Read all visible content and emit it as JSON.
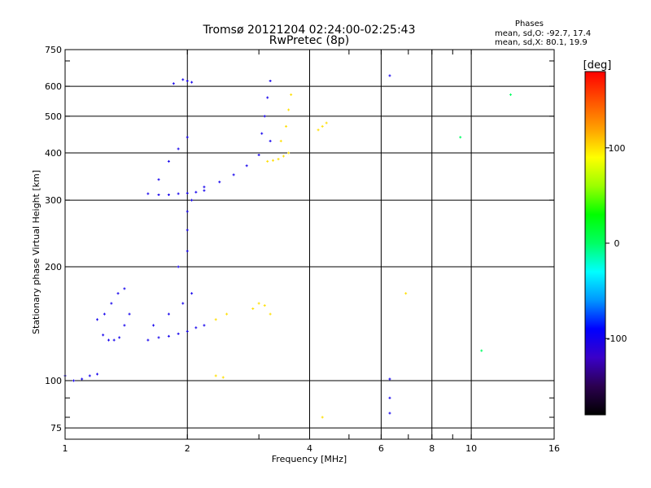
{
  "chart_data": {
    "type": "scatter",
    "title": "Tromsø 20121204 02:24:00-02:25:43",
    "subtitle": "RwPretec (8p)",
    "xlabel": "Frequency [MHz]",
    "ylabel": "Stationary phase Virtual Height [km]",
    "x_scale": "log",
    "y_scale": "log",
    "xlim": [
      1,
      16
    ],
    "ylim": [
      70,
      750
    ],
    "x_ticks": [
      1,
      2,
      4,
      6,
      8,
      10,
      16
    ],
    "y_ticks": [
      75,
      100,
      200,
      300,
      400,
      500,
      600,
      750
    ],
    "grid": true,
    "stats": {
      "heading": "Phases",
      "line_o": "mean, sd,O:  -92.7, 17.4",
      "line_x": "mean, sd,X:   80.1, 19.9"
    },
    "colorbar": {
      "label": "[deg]",
      "ticks": [
        100,
        0,
        -100
      ],
      "range": [
        -180,
        180
      ],
      "colors": [
        "#000000",
        "#2b0050",
        "#3a00c8",
        "#0000ff",
        "#0096ff",
        "#00ffff",
        "#00ff64",
        "#00ff00",
        "#9bff00",
        "#ffff00",
        "#ffa000",
        "#ff5000",
        "#ff0000"
      ]
    },
    "series": [
      {
        "phase": -100,
        "x": [
          1.0,
          1.05,
          1.1,
          1.15,
          1.2
        ],
        "y": [
          103,
          100,
          101,
          103,
          104
        ]
      },
      {
        "phase": -100,
        "x": [
          1.2,
          1.24,
          1.28,
          1.32,
          1.36,
          1.4,
          1.44
        ],
        "y": [
          145,
          132,
          128,
          128,
          130,
          140,
          150
        ]
      },
      {
        "phase": -100,
        "x": [
          1.25,
          1.3,
          1.35,
          1.4
        ],
        "y": [
          150,
          160,
          170,
          175
        ]
      },
      {
        "phase": -100,
        "x": [
          1.6,
          1.7,
          1.8,
          1.9,
          2.0,
          2.1,
          2.2
        ],
        "y": [
          128,
          130,
          131,
          133,
          135,
          138,
          140
        ]
      },
      {
        "phase": -100,
        "x": [
          1.65,
          1.8,
          1.95,
          2.05
        ],
        "y": [
          140,
          150,
          160,
          170
        ]
      },
      {
        "phase": -100,
        "x": [
          1.6,
          1.7,
          1.8,
          1.9,
          2.0,
          2.1,
          2.2
        ],
        "y": [
          312,
          310,
          310,
          312,
          313,
          315,
          318
        ]
      },
      {
        "phase": -100,
        "x": [
          2.2,
          2.4,
          2.6,
          2.8,
          3.0,
          3.2
        ],
        "y": [
          325,
          335,
          350,
          370,
          395,
          430
        ]
      },
      {
        "phase": -100,
        "x": [
          1.7,
          1.8,
          1.9,
          2.0
        ],
        "y": [
          340,
          380,
          410,
          440
        ]
      },
      {
        "phase": -100,
        "x": [
          1.9,
          2.0,
          2.0,
          2.0,
          2.05
        ],
        "y": [
          200,
          220,
          250,
          280,
          300
        ]
      },
      {
        "phase": -100,
        "x": [
          1.85,
          1.95,
          2.0,
          2.05
        ],
        "y": [
          610,
          625,
          620,
          615
        ]
      },
      {
        "phase": -100,
        "x": [
          3.05,
          3.1,
          3.15,
          3.2
        ],
        "y": [
          450,
          500,
          560,
          620
        ]
      },
      {
        "phase": 100,
        "x": [
          3.15,
          3.25,
          3.35,
          3.45,
          3.55
        ],
        "y": [
          380,
          382,
          385,
          392,
          400
        ]
      },
      {
        "phase": 100,
        "x": [
          3.4,
          3.5,
          3.55,
          3.6
        ],
        "y": [
          430,
          470,
          520,
          570
        ]
      },
      {
        "phase": 100,
        "x": [
          2.35,
          2.5,
          2.9,
          3.0,
          3.1,
          3.2
        ],
        "y": [
          145,
          150,
          155,
          160,
          158,
          150
        ]
      },
      {
        "phase": 100,
        "x": [
          2.35,
          2.45
        ],
        "y": [
          103,
          102
        ]
      },
      {
        "phase": 100,
        "x": [
          4.2,
          4.3,
          4.4
        ],
        "y": [
          460,
          470,
          480
        ]
      },
      {
        "phase": -100,
        "x": [
          6.3,
          6.3,
          6.3,
          6.3
        ],
        "y": [
          640,
          101,
          90,
          82
        ]
      },
      {
        "phase": 100,
        "x": [
          4.3,
          6.9
        ],
        "y": [
          80,
          170
        ]
      },
      {
        "phase": 0,
        "x": [
          9.4,
          10.6,
          12.5
        ],
        "y": [
          440,
          120,
          570
        ]
      }
    ]
  }
}
